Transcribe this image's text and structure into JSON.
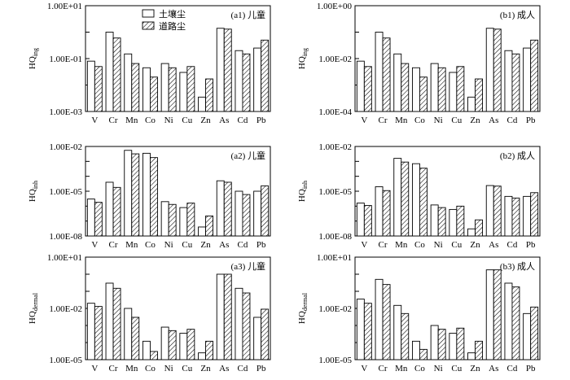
{
  "legend": {
    "soil_label": "土壤尘",
    "road_label": "道路尘"
  },
  "chart_data": [
    {
      "type": "bar",
      "scale": "log",
      "title": "(a1) 儿童",
      "ylabel_main": "HQ",
      "ylabel_sub": "ing",
      "yticks": [
        "1.00E+01",
        "1.00E-01",
        "1.00E-03"
      ],
      "ylim": [
        0.001,
        10
      ],
      "categories": [
        "V",
        "Cr",
        "Mn",
        "Co",
        "Ni",
        "Cu",
        "Zn",
        "As",
        "Cd",
        "Pb"
      ],
      "series": [
        {
          "name": "土壤尘",
          "values": [
            0.08,
            1.0,
            0.15,
            0.045,
            0.065,
            0.03,
            0.0035,
            1.4,
            0.2,
            0.25
          ]
        },
        {
          "name": "道路尘",
          "values": [
            0.05,
            0.6,
            0.065,
            0.02,
            0.045,
            0.05,
            0.017,
            1.3,
            0.15,
            0.5
          ]
        }
      ]
    },
    {
      "type": "bar",
      "scale": "log",
      "title": "(b1) 成人",
      "ylabel_main": "HQ",
      "ylabel_sub": "ing",
      "yticks": [
        "1.00E+00",
        "1.00E-02",
        "1.00E-04"
      ],
      "ylim": [
        0.0001,
        1
      ],
      "categories": [
        "V",
        "Cr",
        "Mn",
        "Co",
        "Ni",
        "Cu",
        "Zn",
        "As",
        "Cd",
        "Pb"
      ],
      "series": [
        {
          "name": "土壤尘",
          "values": [
            0.008,
            0.1,
            0.015,
            0.0045,
            0.0065,
            0.003,
            0.00035,
            0.14,
            0.02,
            0.025
          ]
        },
        {
          "name": "道路尘",
          "values": [
            0.005,
            0.06,
            0.0065,
            0.002,
            0.0045,
            0.005,
            0.0017,
            0.13,
            0.015,
            0.05
          ]
        }
      ]
    },
    {
      "type": "bar",
      "scale": "log",
      "title": "(a2) 儿童",
      "ylabel_main": "HQ",
      "ylabel_sub": "inh",
      "yticks": [
        "1.00E-02",
        "1.00E-05",
        "1.00E-08"
      ],
      "ylim": [
        1e-08,
        0.01
      ],
      "categories": [
        "V",
        "Cr",
        "Mn",
        "Co",
        "Ni",
        "Cu",
        "Zn",
        "As",
        "Cd",
        "Pb"
      ],
      "series": [
        {
          "name": "土壤尘",
          "values": [
            3e-06,
            4e-05,
            0.0055,
            0.0035,
            2e-06,
            8e-07,
            4e-08,
            5e-05,
            1e-05,
            1e-05
          ]
        },
        {
          "name": "道路尘",
          "values": [
            1.8e-06,
            1.8e-05,
            0.0032,
            0.0018,
            1.3e-06,
            1.6e-06,
            2.2e-07,
            4e-05,
            6e-06,
            2.3e-05
          ]
        }
      ]
    },
    {
      "type": "bar",
      "scale": "log",
      "title": "(b2) 成人",
      "ylabel_main": "HQ",
      "ylabel_sub": "inh",
      "yticks": [
        "1.00E-02",
        "1.00E-05",
        "1.00E-08"
      ],
      "ylim": [
        1e-08,
        0.01
      ],
      "categories": [
        "V",
        "Cr",
        "Mn",
        "Co",
        "Ni",
        "Cu",
        "Zn",
        "As",
        "Cd",
        "Pb"
      ],
      "series": [
        {
          "name": "土壤尘",
          "values": [
            1.6e-06,
            2e-05,
            0.0016,
            0.0007,
            1.2e-06,
            6e-07,
            3e-08,
            2.4e-05,
            4.5e-06,
            4.5e-06
          ]
        },
        {
          "name": "道路尘",
          "values": [
            1.1e-06,
            1.1e-05,
            0.0009,
            0.00035,
            8e-07,
            1e-06,
            1.2e-07,
            2.2e-05,
            3.5e-06,
            8e-06
          ]
        }
      ]
    },
    {
      "type": "bar",
      "scale": "log",
      "title": "(a3) 儿童",
      "ylabel_main": "HQ",
      "ylabel_sub": "dermal",
      "yticks": [
        "1.00E+01",
        "1.00E-02",
        "1.00E-05"
      ],
      "ylim": [
        1e-05,
        10
      ],
      "categories": [
        "V",
        "Cr",
        "Mn",
        "Co",
        "Ni",
        "Cu",
        "Zn",
        "As",
        "Cd",
        "Pb"
      ],
      "series": [
        {
          "name": "土壤尘",
          "values": [
            0.02,
            0.3,
            0.01,
            0.00012,
            0.0008,
            0.00035,
            2.5e-05,
            1.0,
            0.15,
            0.003
          ]
        },
        {
          "name": "道路尘",
          "values": [
            0.013,
            0.15,
            0.003,
            3e-05,
            0.0005,
            0.0006,
            0.00012,
            1.0,
            0.08,
            0.009
          ]
        }
      ]
    },
    {
      "type": "bar",
      "scale": "log",
      "title": "(b3) 成人",
      "ylabel_main": "HQ",
      "ylabel_sub": "dermal",
      "yticks": [
        "1.00E+01",
        "1.00E-02",
        "1.00E-05"
      ],
      "ylim": [
        1e-05,
        10
      ],
      "categories": [
        "V",
        "Cr",
        "Mn",
        "Co",
        "Ni",
        "Cu",
        "Zn",
        "As",
        "Cd",
        "Pb"
      ],
      "series": [
        {
          "name": "土壤尘",
          "values": [
            0.035,
            0.5,
            0.015,
            0.00012,
            0.001,
            0.00035,
            2.5e-05,
            1.8,
            0.3,
            0.005
          ]
        },
        {
          "name": "道路尘",
          "values": [
            0.02,
            0.25,
            0.005,
            4e-05,
            0.0006,
            0.0007,
            0.00012,
            1.8,
            0.18,
            0.012
          ]
        }
      ]
    }
  ]
}
